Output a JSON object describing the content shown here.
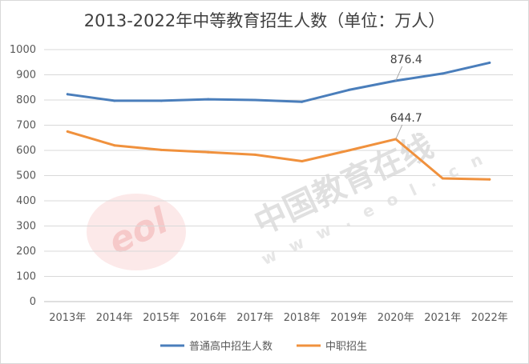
{
  "chart_data": {
    "type": "line",
    "title": "2013-2022年中等教育招生人数（单位：万人）",
    "categories": [
      "2013年",
      "2014年",
      "2015年",
      "2016年",
      "2017年",
      "2018年",
      "2019年",
      "2020年",
      "2021年",
      "2022年"
    ],
    "series": [
      {
        "name": "普通高中招生人数",
        "color": "#4a7ebb",
        "values": [
          823,
          797,
          797,
          803,
          800,
          793,
          840,
          876.4,
          905,
          948
        ]
      },
      {
        "name": "中职招生",
        "color": "#f0913d",
        "values": [
          675,
          620,
          602,
          593,
          583,
          557,
          600,
          644.7,
          489,
          485
        ]
      }
    ],
    "annotations": [
      {
        "series": 0,
        "index": 7,
        "text": "876.4"
      },
      {
        "series": 1,
        "index": 7,
        "text": "644.7"
      }
    ],
    "ylim": [
      0,
      1000
    ],
    "yticks": [
      0,
      100,
      200,
      300,
      400,
      500,
      600,
      700,
      800,
      900,
      1000
    ],
    "grid": true,
    "legend_position": "bottom"
  },
  "watermark": {
    "text": "中国教育在线",
    "sub": "w w w . e o l . c n",
    "logo": "eol"
  }
}
